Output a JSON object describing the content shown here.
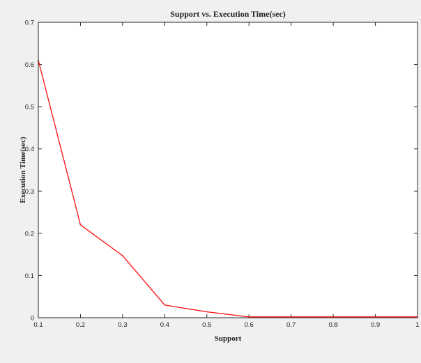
{
  "chart_data": {
    "type": "line",
    "title": "Support vs. Execution Time(sec)",
    "xlabel": "Support",
    "ylabel": "Execution Time(sec)",
    "x": [
      0.1,
      0.2,
      0.3,
      0.4,
      0.5,
      0.6,
      0.7,
      0.8,
      0.9,
      1.0
    ],
    "series": [
      {
        "values": [
          0.61,
          0.22,
          0.147,
          0.03,
          0.014,
          0.002,
          0.002,
          0.002,
          0.002,
          0.002
        ],
        "color": "#ff1a1a"
      }
    ],
    "xlim": [
      0.1,
      1.0
    ],
    "ylim": [
      0,
      0.7
    ],
    "xticks": [
      0.1,
      0.2,
      0.3,
      0.4,
      0.5,
      0.6,
      0.7,
      0.8,
      0.9,
      1
    ],
    "xtick_labels": [
      "0.1",
      "0.2",
      "0.3",
      "0.4",
      "0.5",
      "0.6",
      "0.7",
      "0.8",
      "0.9",
      "1"
    ],
    "yticks": [
      0,
      0.1,
      0.2,
      0.3,
      0.4,
      0.5,
      0.6,
      0.7
    ],
    "ytick_labels": [
      "0",
      "0.1",
      "0.2",
      "0.3",
      "0.4",
      "0.5",
      "0.6",
      "0.7"
    ],
    "grid": false,
    "legend": "none",
    "colors": {
      "figure_background": "#f0f0f0",
      "axes_background": "#ffffff",
      "axes_color": "#262626",
      "line": "#ff1a1a"
    }
  }
}
